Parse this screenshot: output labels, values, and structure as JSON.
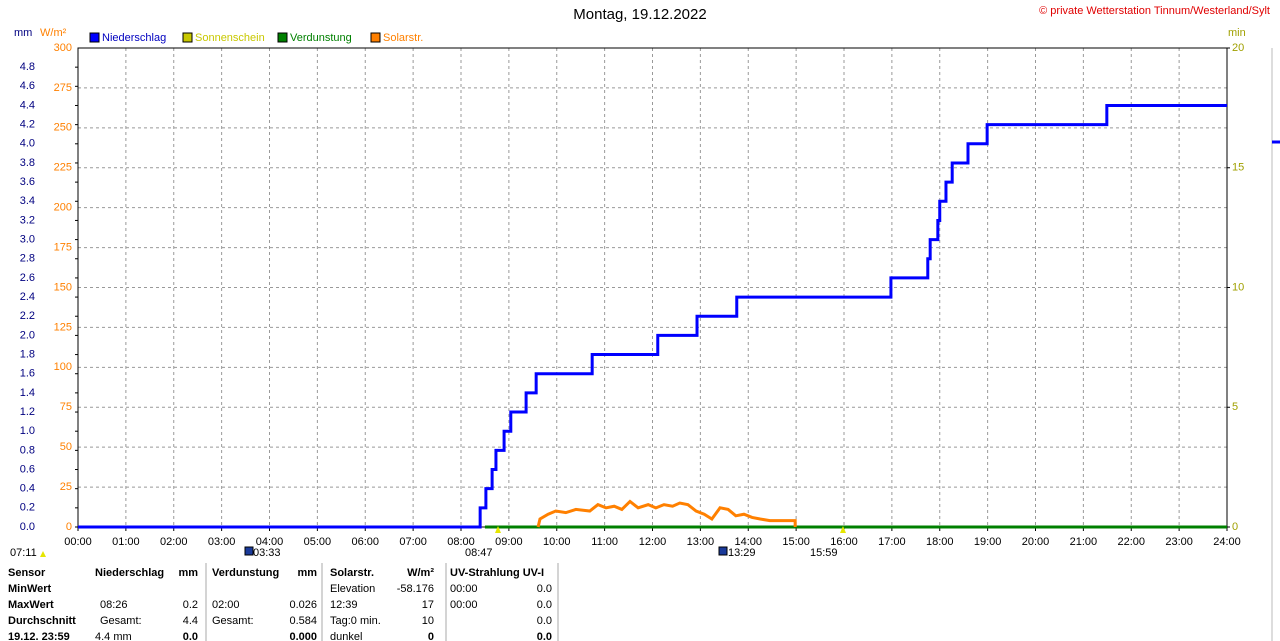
{
  "chart_data": {
    "type": "line",
    "title": "Montag, 19.12.2022",
    "credit": "© private Wetterstation Tinnum/Westerland/Sylt",
    "y_label": "mm",
    "y2_label": "W/m²",
    "y3_label": "min",
    "xlim": [
      0,
      24
    ],
    "xticks": [
      {
        "value": 0,
        "label": "00:00"
      },
      {
        "value": 1,
        "label": "01:00"
      },
      {
        "value": 2,
        "label": "02:00"
      },
      {
        "value": 3,
        "label": "03:00"
      },
      {
        "value": 4,
        "label": "04:00"
      },
      {
        "value": 5,
        "label": "05:00"
      },
      {
        "value": 6,
        "label": "06:00"
      },
      {
        "value": 7,
        "label": "07:00"
      },
      {
        "value": 8,
        "label": "08:00"
      },
      {
        "value": 9,
        "label": "09:00"
      },
      {
        "value": 10,
        "label": "10:00"
      },
      {
        "value": 11,
        "label": "11:00"
      },
      {
        "value": 12,
        "label": "12:00"
      },
      {
        "value": 13,
        "label": "13:00"
      },
      {
        "value": 14,
        "label": "14:00"
      },
      {
        "value": 15,
        "label": "15:00"
      },
      {
        "value": 16,
        "label": "16:00"
      },
      {
        "value": 17,
        "label": "17:00"
      },
      {
        "value": 18,
        "label": "18:00"
      },
      {
        "value": 19,
        "label": "19:00"
      },
      {
        "value": 20,
        "label": "20:00"
      },
      {
        "value": 21,
        "label": "21:00"
      },
      {
        "value": 22,
        "label": "22:00"
      },
      {
        "value": 23,
        "label": "23:00"
      },
      {
        "value": 24,
        "label": "24:00"
      }
    ],
    "ylim": [
      0,
      5
    ],
    "yticks": [
      {
        "value": 0,
        "label": "0.0"
      },
      0.2,
      0.4,
      0.6,
      0.8,
      {
        "value": 1,
        "label": "1.0"
      },
      1.2,
      1.4,
      1.6,
      1.8,
      {
        "value": 2,
        "label": "2.0"
      },
      2.2,
      2.4,
      2.6,
      2.8,
      {
        "value": 3,
        "label": "3.0"
      },
      3.2,
      3.4,
      3.6,
      3.8,
      {
        "value": 4,
        "label": "4.0"
      },
      4.2,
      4.4,
      4.6,
      4.8
    ],
    "y2lim": [
      0,
      300
    ],
    "y2ticks": [
      0,
      25,
      50,
      75,
      100,
      125,
      150,
      175,
      200,
      225,
      250,
      275,
      300
    ],
    "y3lim": [
      0,
      20
    ],
    "y3ticks": [
      0,
      5,
      10,
      15,
      20
    ],
    "grid": true,
    "series": [
      {
        "name": "Niederschlag",
        "color": "#0000ff",
        "x": [
          0,
          8.4,
          8.4,
          8.52,
          8.52,
          8.65,
          8.65,
          8.73,
          8.73,
          8.9,
          8.9,
          9.04,
          9.04,
          9.36,
          9.36,
          9.57,
          9.57,
          10.74,
          10.74,
          12.11,
          12.11,
          12.93,
          12.93,
          13.76,
          13.76,
          16.98,
          16.98,
          17.75,
          17.75,
          17.8,
          17.8,
          17.96,
          17.96,
          18.0,
          18.0,
          18.13,
          18.13,
          18.26,
          18.26,
          18.59,
          18.59,
          18.99,
          18.99,
          21.49,
          21.49,
          24
        ],
        "values": [
          0,
          0,
          0.2,
          0.2,
          0.4,
          0.4,
          0.6,
          0.6,
          0.8,
          0.8,
          1.0,
          1.0,
          1.2,
          1.2,
          1.4,
          1.4,
          1.6,
          1.6,
          1.8,
          1.8,
          2.0,
          2.0,
          2.2,
          2.2,
          2.4,
          2.4,
          2.6,
          2.6,
          2.8,
          2.8,
          3.0,
          3.0,
          3.2,
          3.2,
          3.4,
          3.4,
          3.6,
          3.6,
          3.8,
          3.8,
          4.0,
          4.0,
          4.2,
          4.2,
          4.4,
          4.4
        ]
      },
      {
        "name": "Sonnenschein",
        "color": "#c8c800",
        "axis": "y3",
        "x": [],
        "values": []
      },
      {
        "name": "Verdunstung",
        "color": "#008000",
        "x": [
          8.5,
          24
        ],
        "values": [
          0,
          0
        ]
      },
      {
        "name": "Solarstr.",
        "color": "#ff8000",
        "axis": "y2",
        "x": [
          9.61,
          9.65,
          9.82,
          9.98,
          10.19,
          10.4,
          10.69,
          10.86,
          11.03,
          11.2,
          11.36,
          11.53,
          11.7,
          11.91,
          12.07,
          12.24,
          12.42,
          12.57,
          12.74,
          12.91,
          13.08,
          13.24,
          13.41,
          13.58,
          13.74,
          13.91,
          14.08,
          14.25,
          14.45,
          14.98,
          14.98
        ],
        "values": [
          0,
          5,
          8,
          10,
          9,
          11,
          10,
          14,
          12,
          13,
          11,
          16,
          12,
          14,
          12,
          14,
          13,
          15,
          14,
          10,
          8,
          5,
          12,
          11,
          7,
          8,
          6,
          5,
          4,
          4,
          0
        ]
      }
    ],
    "annotations": [
      "07:11",
      "03:33",
      "08:47",
      "13:29",
      "15:59"
    ]
  },
  "stats_table": {
    "rows": [
      [
        "Sensor",
        "Niederschlag",
        "mm",
        "Verdunstung",
        "mm",
        "Solarstr.",
        "W/m²",
        "UV-Strahlung UV-I",
        null
      ],
      [
        "MinWert",
        null,
        null,
        null,
        null,
        "Elevation",
        "-58.176",
        "00:00",
        "0.0"
      ],
      [
        "MaxWert",
        "08:26",
        "0.2",
        "02:00",
        "0.026",
        "12:39",
        "17",
        "00:00",
        "0.0"
      ],
      [
        "Durchschnitt",
        "Gesamt:",
        "4.4",
        "Gesamt:",
        "0.584",
        "Tag:0 min.",
        "10",
        null,
        "0.0"
      ],
      [
        "19.12. 23:59",
        "4.4 mm",
        "0.0",
        null,
        "0.000",
        "dunkel",
        "0",
        null,
        "0.0"
      ]
    ]
  }
}
